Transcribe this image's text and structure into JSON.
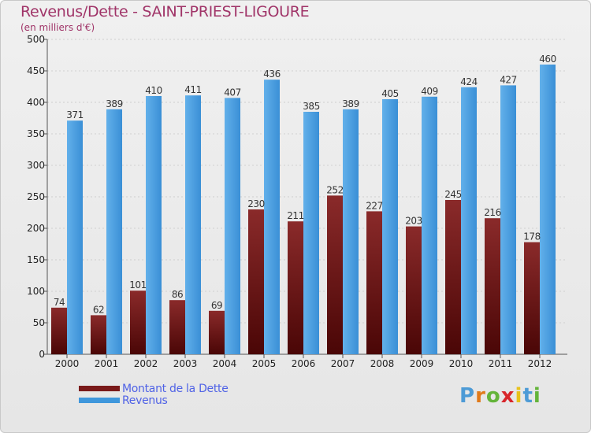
{
  "title": "Revenus/Dette - SAINT-PRIEST-LIGOURE",
  "subtitle": "(en milliers d'€)",
  "logo_text": "Proxiti",
  "colors": {
    "dette": "#7a1a1a",
    "revenus": "#3f97dc",
    "title": "#a03468",
    "legend_text": "#4f62e6"
  },
  "chart_data": {
    "type": "bar",
    "title": "Revenus/Dette - SAINT-PRIEST-LIGOURE",
    "xlabel": "",
    "ylabel": "(en milliers d'€)",
    "ylim": [
      0,
      500
    ],
    "yticks": [
      0,
      50,
      100,
      150,
      200,
      250,
      300,
      350,
      400,
      450,
      500
    ],
    "grid": true,
    "legend_position": "bottom-left",
    "categories": [
      "2000",
      "2001",
      "2002",
      "2003",
      "2004",
      "2005",
      "2006",
      "2007",
      "2008",
      "2009",
      "2010",
      "2011",
      "2012"
    ],
    "series": [
      {
        "name": "Montant de la Dette",
        "color": "#7a1a1a",
        "values": [
          74,
          62,
          101,
          86,
          69,
          230,
          211,
          252,
          227,
          203,
          245,
          216,
          178
        ]
      },
      {
        "name": "Revenus",
        "color": "#3f97dc",
        "values": [
          371,
          389,
          410,
          411,
          407,
          436,
          385,
          389,
          405,
          409,
          424,
          427,
          460
        ]
      }
    ]
  }
}
